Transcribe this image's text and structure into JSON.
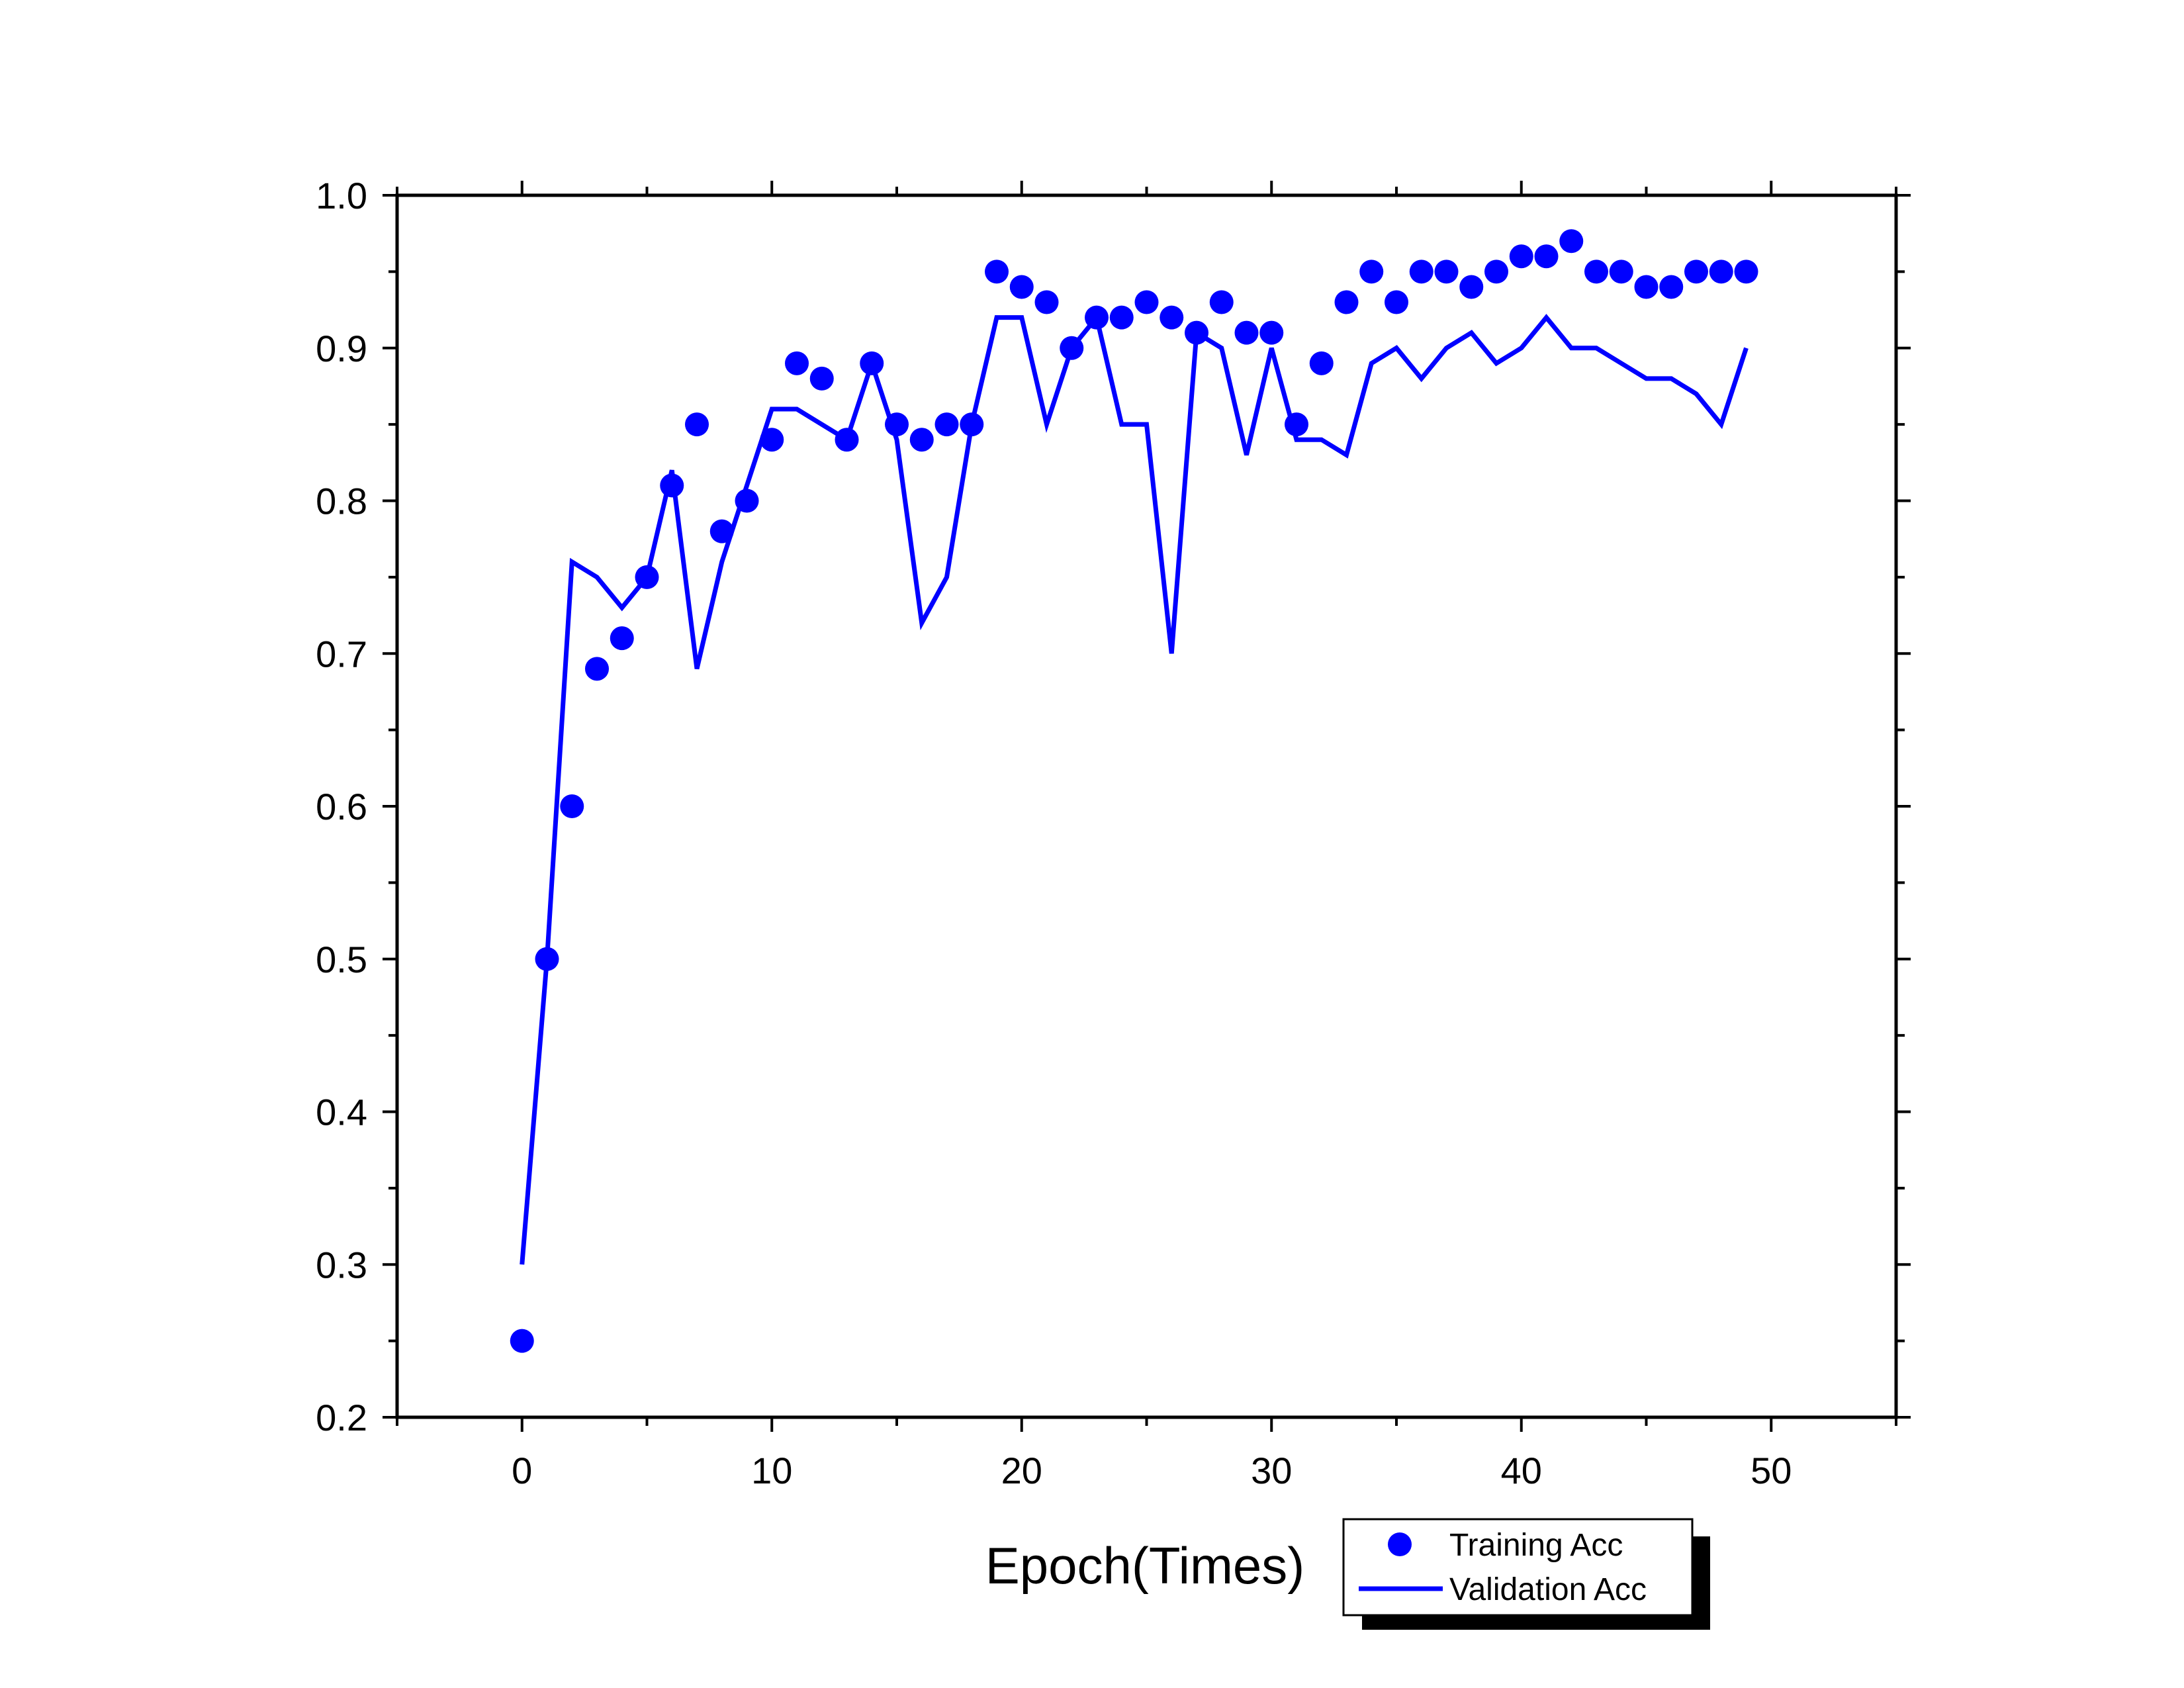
{
  "chart_data": {
    "type": "line",
    "title": "",
    "xlabel": "Epoch(Times)",
    "ylabel": "",
    "xlim": [
      -5,
      55
    ],
    "ylim": [
      0.2,
      1.0
    ],
    "xticks": [
      0,
      10,
      20,
      30,
      40,
      50
    ],
    "xtick_labels": [
      "0",
      "10",
      "20",
      "30",
      "40",
      "50"
    ],
    "yticks": [
      0.2,
      0.3,
      0.4,
      0.5,
      0.6,
      0.7,
      0.8,
      0.9,
      1.0
    ],
    "ytick_labels": [
      "0.2",
      "0.3",
      "0.4",
      "0.5",
      "0.6",
      "0.7",
      "0.8",
      "0.9",
      "1.0"
    ],
    "grid": false,
    "legend_position": "bottom-right",
    "color": "#0000ff",
    "x": [
      0,
      1,
      2,
      3,
      4,
      5,
      6,
      7,
      8,
      9,
      10,
      11,
      12,
      13,
      14,
      15,
      16,
      17,
      18,
      19,
      20,
      21,
      22,
      23,
      24,
      25,
      26,
      27,
      28,
      29,
      30,
      31,
      32,
      33,
      34,
      35,
      36,
      37,
      38,
      39,
      40,
      41,
      42,
      43,
      44,
      45,
      46,
      47,
      48,
      49
    ],
    "series": [
      {
        "name": "Training Acc",
        "style": "scatter",
        "color": "#0000ff",
        "values": [
          0.25,
          0.5,
          0.6,
          0.69,
          0.71,
          0.75,
          0.81,
          0.85,
          0.78,
          0.8,
          0.84,
          0.89,
          0.88,
          0.84,
          0.89,
          0.85,
          0.84,
          0.85,
          0.85,
          0.95,
          0.94,
          0.93,
          0.9,
          0.92,
          0.92,
          0.93,
          0.92,
          0.91,
          0.93,
          0.91,
          0.91,
          0.85,
          0.89,
          0.93,
          0.95,
          0.93,
          0.95,
          0.95,
          0.94,
          0.95,
          0.96,
          0.96,
          0.97,
          0.95,
          0.95,
          0.94,
          0.94,
          0.95,
          0.95,
          0.95
        ]
      },
      {
        "name": "Validation Acc",
        "style": "line",
        "color": "#0000ff",
        "values": [
          0.3,
          0.5,
          0.76,
          0.75,
          0.73,
          0.75,
          0.82,
          0.69,
          0.76,
          0.81,
          0.86,
          0.86,
          0.85,
          0.84,
          0.89,
          0.84,
          0.72,
          0.75,
          0.85,
          0.92,
          0.92,
          0.85,
          0.9,
          0.92,
          0.85,
          0.85,
          0.7,
          0.91,
          0.9,
          0.83,
          0.9,
          0.84,
          0.84,
          0.83,
          0.89,
          0.9,
          0.88,
          0.9,
          0.91,
          0.89,
          0.9,
          0.92,
          0.9,
          0.9,
          0.89,
          0.88,
          0.88,
          0.87,
          0.85,
          0.9
        ]
      }
    ]
  }
}
